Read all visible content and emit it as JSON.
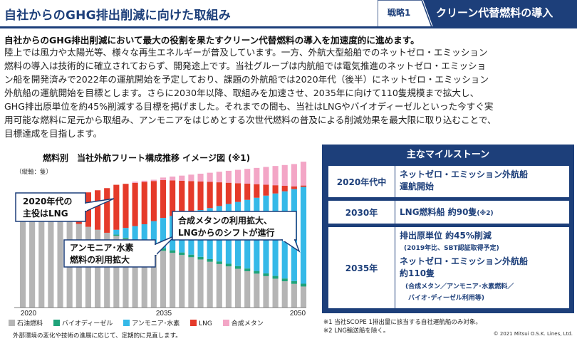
{
  "header": {
    "title": "自社からのGHG排出削減に向けた取組み",
    "strategy_number": "戦略1",
    "strategy_label": "クリーン代替燃料の導入"
  },
  "lead": "自社からのGHG排出削減において最大の役割を果たすクリーン代替燃料の導入を加速度的に進めます。",
  "body_lines": [
    "陸上では風力や太陽光等、様々な再生エネルギーが普及しています。一方、外航大型船舶でのネットゼロ・エミッション",
    "燃料の導入は技術的に確立されておらず、開発途上です。当社グループは内航船では電気推進のネットゼロ・エミッショ",
    "ン船を開発済みで2022年の運航開始を予定しており、課題の外航船では2020年代（後半）にネットゼロ・エミッション",
    "外航船の運航開始を目標とします。さらに2030年以降、取組みを加速させ、2035年に向けて110隻規模まで拡大し、",
    "GHG排出原単位を約45%削減する目標を掲げました。それまでの間も、当社はLNGやバイオディーゼルといった今すぐ実",
    "用可能な燃料に足元から取組み、アンモニアをはじめとする次世代燃料の普及による削減効果を最大限に取り込むことで、",
    "目標達成を目指します。"
  ],
  "chart": {
    "title": "燃料別　当社外航フリート構成推移 イメージ図 (※1)",
    "unit": "（縦軸：隻）",
    "x_labels": {
      "start": "2020",
      "mid": "2035",
      "end": "2050"
    },
    "callouts": {
      "lng_main_1": "2020年代の",
      "lng_main_2": "主役はLNG",
      "ammonia_1": "アンモニア･水素",
      "ammonia_2": "燃料の利用拡大",
      "methane_1": "合成メタンの利用拡大、",
      "methane_2": "LNGからのシフトが進行"
    },
    "legend": [
      {
        "label": "石油燃料",
        "color": "#b5b5b5"
      },
      {
        "label": "バイオディーゼル",
        "color": "#1fa37a"
      },
      {
        "label": "アンモニア･水素",
        "color": "#35b9e8"
      },
      {
        "label": "LNG",
        "color": "#e53a2a"
      },
      {
        "label": "合成メタン",
        "color": "#f3a6c6"
      }
    ],
    "note": "外部環境の変化や技術の進展に応じて、定期的に見直します。"
  },
  "chart_data": {
    "type": "bar",
    "stacked": true,
    "x_start": 2020,
    "x_end": 2050,
    "categories": [
      "2020",
      "",
      "",
      "",
      "",
      "",
      "",
      "",
      "",
      "",
      "",
      "",
      "",
      "",
      "",
      "2035",
      "",
      "",
      "",
      "",
      "",
      "",
      "",
      "",
      "",
      "",
      "",
      "",
      "",
      "",
      "2050"
    ],
    "series": [
      {
        "name": "石油燃料",
        "values": [
          0.88,
          0.86,
          0.83,
          0.8,
          0.77,
          0.74,
          0.71,
          0.68,
          0.65,
          0.62,
          0.59,
          0.56,
          0.53,
          0.5,
          0.47,
          0.45,
          0.43,
          0.41,
          0.39,
          0.37,
          0.35,
          0.33,
          0.31,
          0.29,
          0.27,
          0.25,
          0.23,
          0.21,
          0.19,
          0.17,
          0.15
        ]
      },
      {
        "name": "バイオディーゼル",
        "values": [
          0.0,
          0.0,
          0.0,
          0.0,
          0.0,
          0.0,
          0.0,
          0.0,
          0.0,
          0.0,
          0.01,
          0.01,
          0.01,
          0.01,
          0.02,
          0.02,
          0.02,
          0.02,
          0.02,
          0.02,
          0.02,
          0.02,
          0.02,
          0.02,
          0.02,
          0.02,
          0.02,
          0.02,
          0.02,
          0.02,
          0.02
        ]
      },
      {
        "name": "アンモニア･水素",
        "values": [
          0.0,
          0.0,
          0.0,
          0.0,
          0.0,
          0.0,
          0.0,
          0.0,
          0.0,
          0.0,
          0.04,
          0.08,
          0.12,
          0.16,
          0.2,
          0.24,
          0.27,
          0.3,
          0.33,
          0.36,
          0.39,
          0.42,
          0.45,
          0.48,
          0.51,
          0.54,
          0.57,
          0.6,
          0.63,
          0.66,
          0.69
        ]
      },
      {
        "name": "LNG",
        "values": [
          0.04,
          0.06,
          0.09,
          0.13,
          0.17,
          0.21,
          0.25,
          0.29,
          0.33,
          0.37,
          0.37,
          0.36,
          0.35,
          0.34,
          0.32,
          0.3,
          0.28,
          0.26,
          0.24,
          0.22,
          0.2,
          0.18,
          0.16,
          0.14,
          0.12,
          0.1,
          0.08,
          0.06,
          0.04,
          0.02,
          0.01
        ]
      },
      {
        "name": "合成メタン",
        "values": [
          0.0,
          0.0,
          0.0,
          0.0,
          0.0,
          0.0,
          0.0,
          0.0,
          0.0,
          0.0,
          0.0,
          0.0,
          0.01,
          0.01,
          0.01,
          0.02,
          0.03,
          0.04,
          0.05,
          0.06,
          0.07,
          0.08,
          0.09,
          0.1,
          0.11,
          0.12,
          0.13,
          0.14,
          0.15,
          0.16,
          0.17
        ]
      }
    ]
  },
  "milestones": {
    "title": "主なマイルストーン",
    "rows": [
      {
        "year": "2020年代中",
        "lines": [
          "ネットゼロ・エミッション外航船",
          "運航開始"
        ]
      },
      {
        "year": "2030年",
        "lines": [
          "LNG燃料船 約90隻"
        ],
        "sup": "(※2)"
      },
      {
        "year": "2035年",
        "lines": [
          "排出原単位 約45%削減",
          "(2019年比、SBT認証取得予定)",
          "ネットゼロ・エミッション外航船",
          "約110隻",
          "(合成メタン／アンモニア･水素燃料／",
          "バイオ･ディーゼル利用等)"
        ]
      }
    ]
  },
  "footnotes": [
    "※1 当社SCOPE 1排出量に該当する自社運航船のみ対象。",
    "※2 LNG輸送船を除く。"
  ],
  "copyright": "© 2021 Mitsui O.S.K. Lines, Ltd."
}
